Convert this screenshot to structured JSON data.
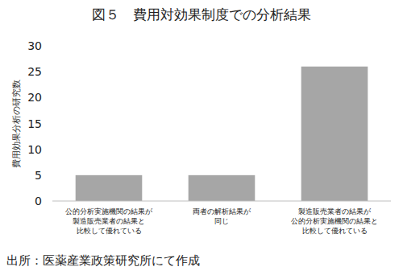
{
  "chart_data": {
    "type": "bar",
    "title": "図５　費用対効果制度での分析結果",
    "y_label": "費用効果分析の研究数",
    "categories": [
      "公的分析実施機関の結果が\n製造販売業者の結果と\n比較して優れている",
      "両者の解析結果が\n同じ",
      "製造販売業者の結果が\n公的分析実施機関の結果と\n比較して優れている"
    ],
    "values": [
      5,
      5,
      26
    ],
    "color": "#a6a6a6",
    "ylim": [
      0,
      30
    ],
    "yticks": [
      0,
      5,
      10,
      15,
      20,
      25,
      30
    ],
    "grid": false,
    "source": "出所：医薬産業政策研究所にて作成"
  }
}
